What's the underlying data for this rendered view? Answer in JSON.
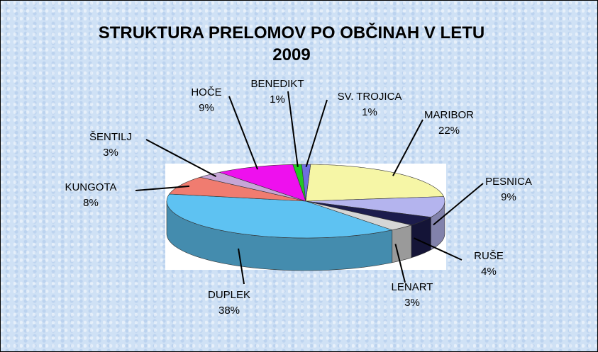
{
  "chart_data": {
    "type": "pie",
    "title": "STRUKTURA PRELOMOV PO OBČINAH V LETU 2009",
    "categories": [
      "MARIBOR",
      "PESNICA",
      "RUŠE",
      "LENART",
      "DUPLEK",
      "KUNGOTA",
      "ŠENTILJ",
      "HOČE",
      "BENEDIKT",
      "SV. TROJICA"
    ],
    "values": [
      22,
      9,
      4,
      3,
      38,
      8,
      3,
      9,
      1,
      1
    ],
    "value_labels": [
      "22%",
      "9%",
      "4%",
      "3%",
      "38%",
      "8%",
      "3%",
      "9%",
      "1%",
      "1%"
    ],
    "colors": [
      "#f6f6a6",
      "#b4b4ee",
      "#1c1c4c",
      "#d6d6d6",
      "#5ec2f2",
      "#f07c70",
      "#c6a6d6",
      "#ee10ee",
      "#22c822",
      "#6e6ee0"
    ]
  }
}
